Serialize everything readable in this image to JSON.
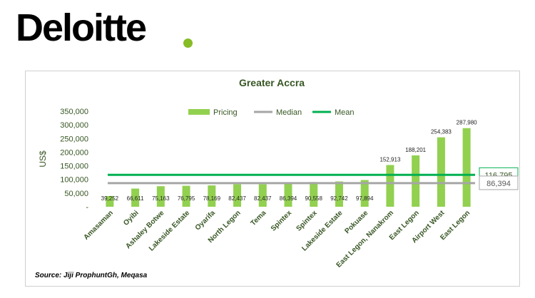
{
  "logo": {
    "text": "Deloitte"
  },
  "source": "Source: Jiji ProphuntGh, Meqasa",
  "colors": {
    "bar": "#92d050",
    "median": "#a6a6a6",
    "mean": "#00b050",
    "text": "#375623",
    "brand_dot": "#86bc25"
  },
  "chart_data": {
    "type": "bar",
    "title": "Greater Accra",
    "ylabel": "US$",
    "xlabel": "",
    "ylim": [
      0,
      350000
    ],
    "yticks": [
      "-",
      "50,000",
      "100,000",
      "150,000",
      "200,000",
      "250,000",
      "300,000",
      "350,000"
    ],
    "grid": false,
    "legend_position": "top",
    "legend": [
      "Pricing",
      "Median",
      "Mean"
    ],
    "categories": [
      "Amasaman",
      "Oyibi",
      "Ashaley Botwe",
      "Lakeside Estate",
      "Oyarifa",
      "North Legon",
      "Tema",
      "Spintex",
      "Spintex",
      "Lakeside Estate",
      "Pokuase",
      "East Legon, Nanakrom",
      "East Legon",
      "Airport West",
      "East Legon"
    ],
    "series": [
      {
        "name": "Pricing",
        "values": [
          39252,
          66611,
          75163,
          76795,
          78169,
          82437,
          82437,
          86394,
          90558,
          92742,
          97894,
          152913,
          188201,
          254383,
          287980
        ],
        "labels": [
          "39,252",
          "66,611",
          "75,163",
          "76,795",
          "78,169",
          "82,437",
          "82,437",
          "86,394",
          "90,558",
          "92,742",
          "97,894",
          "152,913",
          "188,201",
          "254,383",
          "287,980"
        ]
      }
    ],
    "lines": [
      {
        "name": "Median",
        "value": 86394,
        "label": "86,394"
      },
      {
        "name": "Mean",
        "value": 116795,
        "label": "116,795"
      }
    ]
  }
}
